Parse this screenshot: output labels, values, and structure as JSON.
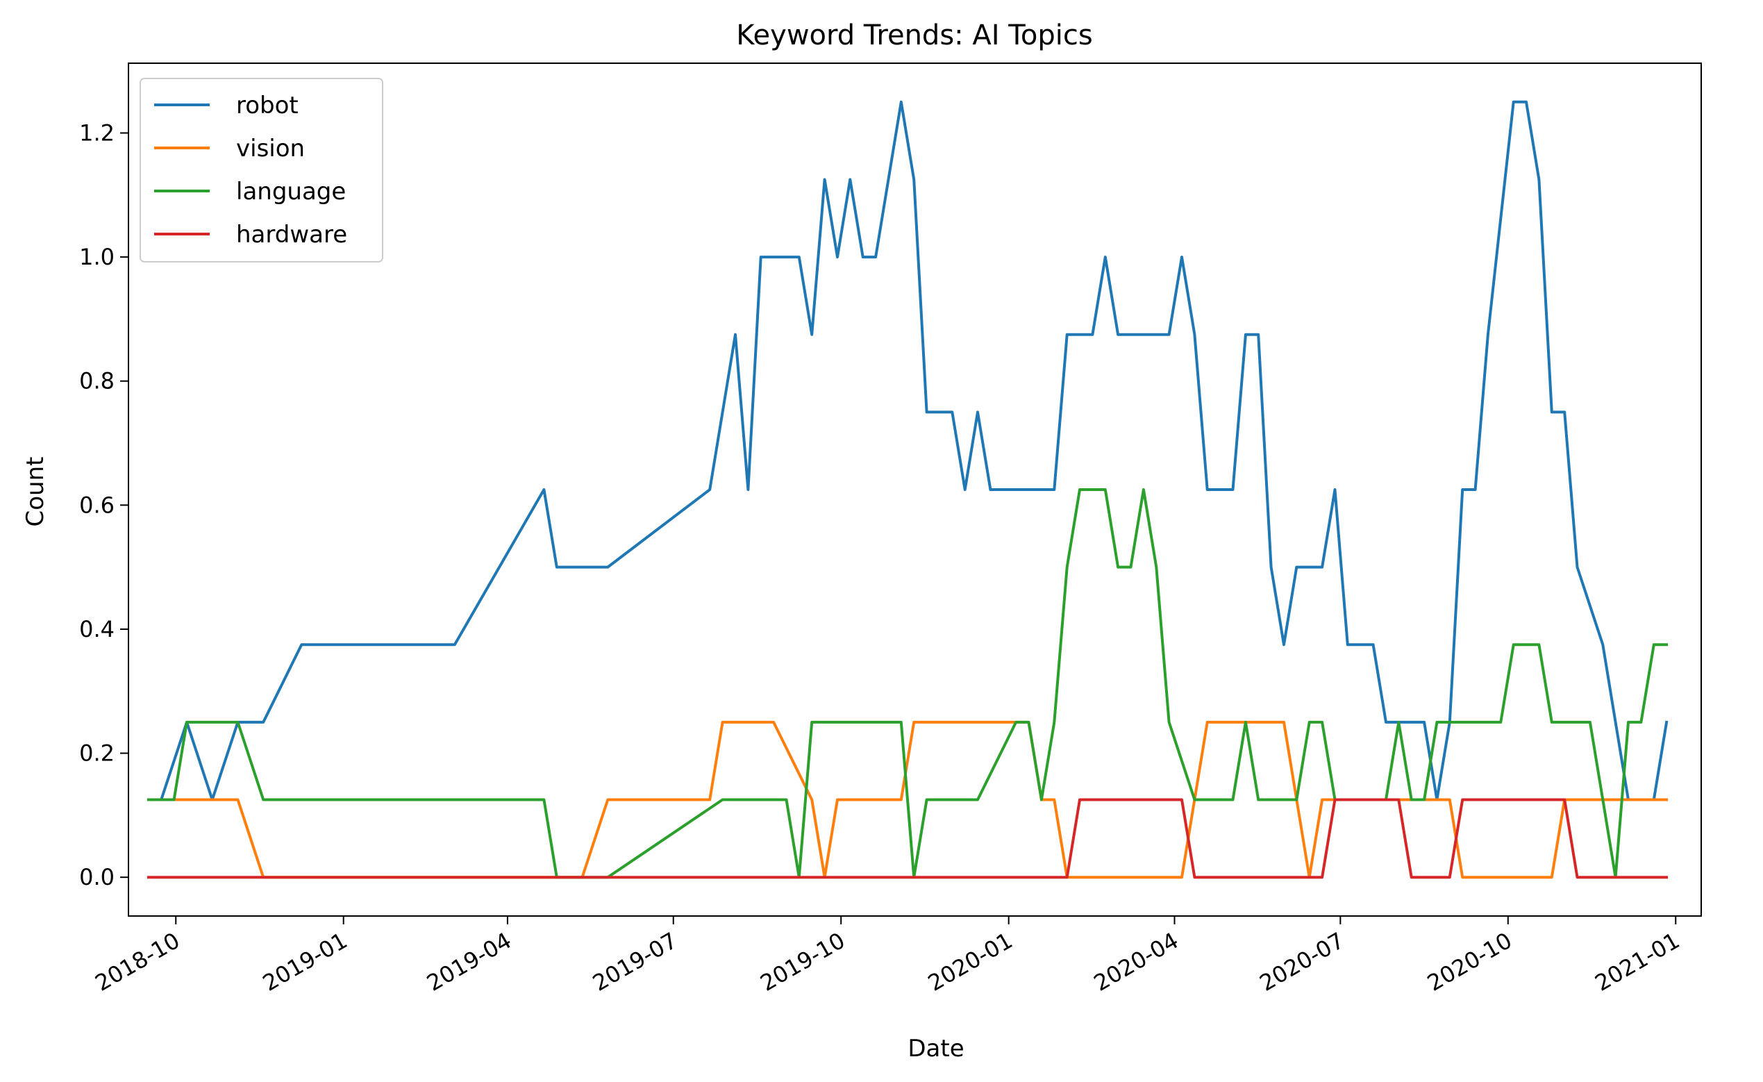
{
  "chart_data": {
    "type": "line",
    "title": "Keyword Trends: AI Topics",
    "xlabel": "Date",
    "ylabel": "Count",
    "xlim": [
      "2018-09-05",
      "2021-01-15"
    ],
    "ylim": [
      -0.0625,
      1.3125
    ],
    "x_ticks": [
      "2018-10-01",
      "2019-01-01",
      "2019-04-01",
      "2019-07-01",
      "2019-10-01",
      "2020-01-01",
      "2020-04-01",
      "2020-07-01",
      "2020-10-01",
      "2021-01-01"
    ],
    "x_tick_labels": [
      "2018-10",
      "2019-01",
      "2019-04",
      "2019-07",
      "2019-10",
      "2020-01",
      "2020-04",
      "2020-07",
      "2020-10",
      "2021-01"
    ],
    "y_ticks": [
      0.0,
      0.2,
      0.4,
      0.6,
      0.8,
      1.0,
      1.2
    ],
    "y_tick_labels": [
      "0.0",
      "0.2",
      "0.4",
      "0.6",
      "0.8",
      "1.0",
      "1.2"
    ],
    "grid": false,
    "legend_position": "top-left",
    "colors": {
      "robot": "#1f77b4",
      "vision": "#ff7f0e",
      "language": "#2ca02c",
      "hardware": "#d62728"
    },
    "series": [
      {
        "name": "robot",
        "x": [
          "2018-09-16",
          "2018-09-23",
          "2018-10-07",
          "2018-10-21",
          "2018-11-04",
          "2018-11-18",
          "2018-12-09",
          "2019-03-03",
          "2019-04-21",
          "2019-04-28",
          "2019-05-26",
          "2019-07-21",
          "2019-07-28",
          "2019-08-04",
          "2019-08-11",
          "2019-08-18",
          "2019-09-08",
          "2019-09-15",
          "2019-09-22",
          "2019-09-29",
          "2019-10-06",
          "2019-10-13",
          "2019-10-20",
          "2019-11-03",
          "2019-11-10",
          "2019-11-17",
          "2019-12-01",
          "2019-12-08",
          "2019-12-15",
          "2019-12-22",
          "2020-01-26",
          "2020-02-02",
          "2020-02-16",
          "2020-02-23",
          "2020-03-01",
          "2020-03-29",
          "2020-04-05",
          "2020-04-12",
          "2020-04-19",
          "2020-05-03",
          "2020-05-10",
          "2020-05-17",
          "2020-05-24",
          "2020-05-31",
          "2020-06-07",
          "2020-06-21",
          "2020-06-28",
          "2020-07-05",
          "2020-07-19",
          "2020-07-26",
          "2020-08-16",
          "2020-08-23",
          "2020-08-30",
          "2020-09-06",
          "2020-09-13",
          "2020-09-20",
          "2020-10-04",
          "2020-10-11",
          "2020-10-18",
          "2020-10-25",
          "2020-11-01",
          "2020-11-08",
          "2020-11-22",
          "2020-11-29",
          "2020-12-06",
          "2020-12-13",
          "2020-12-20",
          "2020-12-27"
        ],
        "y": [
          0.125,
          0.125,
          0.25,
          0.125,
          0.25,
          0.25,
          0.375,
          0.375,
          0.625,
          0.5,
          0.5,
          0.625,
          0.75,
          0.875,
          0.625,
          1.0,
          1.0,
          0.875,
          1.125,
          1.0,
          1.125,
          1.0,
          1.0,
          1.25,
          1.125,
          0.75,
          0.75,
          0.625,
          0.75,
          0.625,
          0.625,
          0.875,
          0.875,
          1.0,
          0.875,
          0.875,
          1.0,
          0.875,
          0.625,
          0.625,
          0.875,
          0.875,
          0.5,
          0.375,
          0.5,
          0.5,
          0.625,
          0.375,
          0.375,
          0.25,
          0.25,
          0.125,
          0.25,
          0.625,
          0.625,
          0.875,
          1.25,
          1.25,
          1.125,
          0.75,
          0.75,
          0.5,
          0.375,
          0.25,
          0.125,
          0.125,
          0.125,
          0.25
        ]
      },
      {
        "name": "vision",
        "x": [
          "2018-09-16",
          "2018-11-04",
          "2018-11-18",
          "2019-05-12",
          "2019-05-26",
          "2019-07-21",
          "2019-07-28",
          "2019-08-25",
          "2019-09-15",
          "2019-09-22",
          "2019-09-29",
          "2019-11-03",
          "2019-11-10",
          "2020-01-12",
          "2020-01-19",
          "2020-01-26",
          "2020-02-02",
          "2020-04-05",
          "2020-04-19",
          "2020-05-31",
          "2020-06-14",
          "2020-06-21",
          "2020-08-30",
          "2020-09-06",
          "2020-10-25",
          "2020-11-01",
          "2020-12-27"
        ],
        "y": [
          0.125,
          0.125,
          0.0,
          0.0,
          0.125,
          0.125,
          0.25,
          0.25,
          0.125,
          0.0,
          0.125,
          0.125,
          0.25,
          0.25,
          0.125,
          0.125,
          0.0,
          0.0,
          0.25,
          0.25,
          0.0,
          0.125,
          0.125,
          0.0,
          0.0,
          0.125,
          0.125
        ]
      },
      {
        "name": "language",
        "x": [
          "2018-09-16",
          "2018-09-30",
          "2018-10-07",
          "2018-11-04",
          "2018-11-18",
          "2019-04-21",
          "2019-04-28",
          "2019-05-26",
          "2019-07-28",
          "2019-09-01",
          "2019-09-08",
          "2019-09-15",
          "2019-11-03",
          "2019-11-10",
          "2019-11-17",
          "2019-12-15",
          "2020-01-05",
          "2020-01-12",
          "2020-01-19",
          "2020-01-26",
          "2020-02-02",
          "2020-02-09",
          "2020-02-23",
          "2020-03-01",
          "2020-03-08",
          "2020-03-15",
          "2020-03-22",
          "2020-03-29",
          "2020-04-12",
          "2020-05-03",
          "2020-05-10",
          "2020-05-17",
          "2020-06-07",
          "2020-06-14",
          "2020-06-21",
          "2020-06-28",
          "2020-07-26",
          "2020-08-02",
          "2020-08-09",
          "2020-08-16",
          "2020-08-23",
          "2020-08-30",
          "2020-09-27",
          "2020-10-04",
          "2020-10-18",
          "2020-10-25",
          "2020-11-15",
          "2020-11-22",
          "2020-11-29",
          "2020-12-06",
          "2020-12-13",
          "2020-12-20",
          "2020-12-27"
        ],
        "y": [
          0.125,
          0.125,
          0.25,
          0.25,
          0.125,
          0.125,
          0.0,
          0.0,
          0.125,
          0.125,
          0.0,
          0.25,
          0.25,
          0.0,
          0.125,
          0.125,
          0.25,
          0.25,
          0.125,
          0.25,
          0.5,
          0.625,
          0.625,
          0.5,
          0.5,
          0.625,
          0.5,
          0.25,
          0.125,
          0.125,
          0.25,
          0.125,
          0.125,
          0.25,
          0.25,
          0.125,
          0.125,
          0.25,
          0.125,
          0.125,
          0.25,
          0.25,
          0.25,
          0.375,
          0.375,
          0.25,
          0.25,
          0.125,
          0.0,
          0.25,
          0.25,
          0.375,
          0.375
        ]
      },
      {
        "name": "hardware",
        "x": [
          "2018-09-16",
          "2020-02-02",
          "2020-02-09",
          "2020-04-05",
          "2020-04-12",
          "2020-06-21",
          "2020-06-28",
          "2020-08-02",
          "2020-08-09",
          "2020-08-30",
          "2020-09-06",
          "2020-11-01",
          "2020-11-08",
          "2020-12-27"
        ],
        "y": [
          0.0,
          0.0,
          0.125,
          0.125,
          0.0,
          0.0,
          0.125,
          0.125,
          0.0,
          0.0,
          0.125,
          0.125,
          0.0,
          0.0
        ]
      }
    ]
  }
}
